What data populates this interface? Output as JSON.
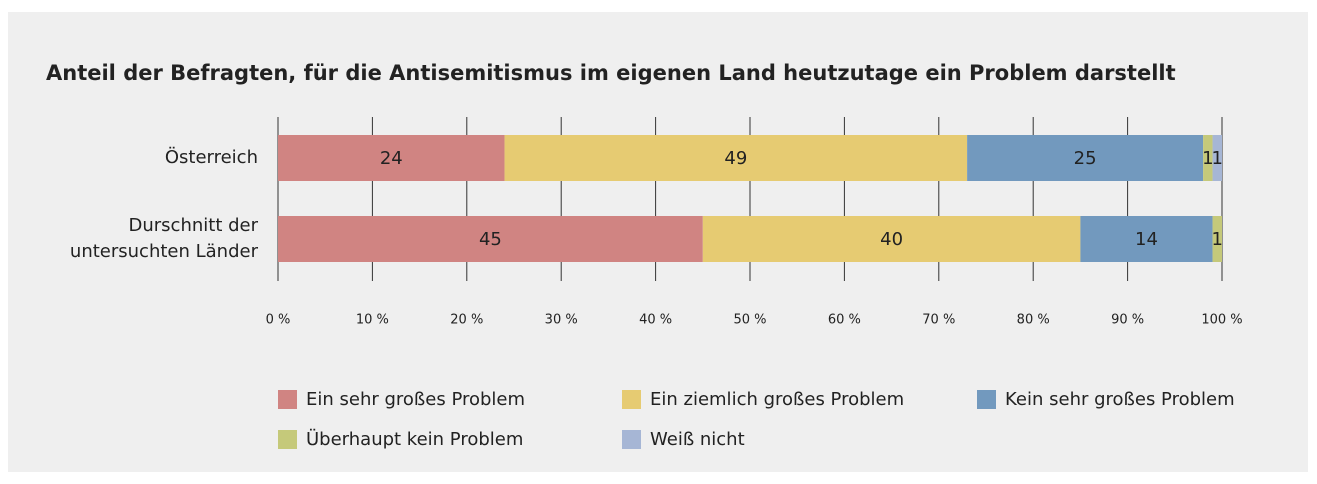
{
  "chart_data": {
    "type": "stacked-bar-horizontal",
    "title": "Anteil der Befragten, für die Antisemitismus im eigenen Land heutzutage ein Problem darstellt",
    "categories": [
      "Österreich",
      "Durschnitt der untersuchten Länder"
    ],
    "series": [
      {
        "name": "Ein sehr großes Problem",
        "color": "#d08482",
        "values": [
          24,
          45
        ]
      },
      {
        "name": "Ein ziemlich großes Problem",
        "color": "#e6cb72",
        "values": [
          49,
          40
        ]
      },
      {
        "name": "Kein sehr großes Problem",
        "color": "#7299be",
        "values": [
          25,
          14
        ]
      },
      {
        "name": "Überhaupt kein Problem",
        "color": "#c5c97a",
        "values": [
          1,
          1
        ]
      },
      {
        "name": "Weiß nicht",
        "color": "#a6b6d5",
        "values": [
          1,
          null
        ]
      }
    ],
    "xlim": [
      0,
      100
    ],
    "xticks": [
      {
        "value": 0,
        "label": "0 %"
      },
      {
        "value": 10,
        "label": "10 %"
      },
      {
        "value": 20,
        "label": "20 %"
      },
      {
        "value": 30,
        "label": "30 %"
      },
      {
        "value": 40,
        "label": "40 %"
      },
      {
        "value": 50,
        "label": "50 %"
      },
      {
        "value": 60,
        "label": "60 %"
      },
      {
        "value": 70,
        "label": "70 %"
      },
      {
        "value": 80,
        "label": "80 %"
      },
      {
        "value": 90,
        "label": "90 %"
      },
      {
        "value": 100,
        "label": "100 %"
      }
    ],
    "grid": true,
    "legend": "bottom"
  }
}
